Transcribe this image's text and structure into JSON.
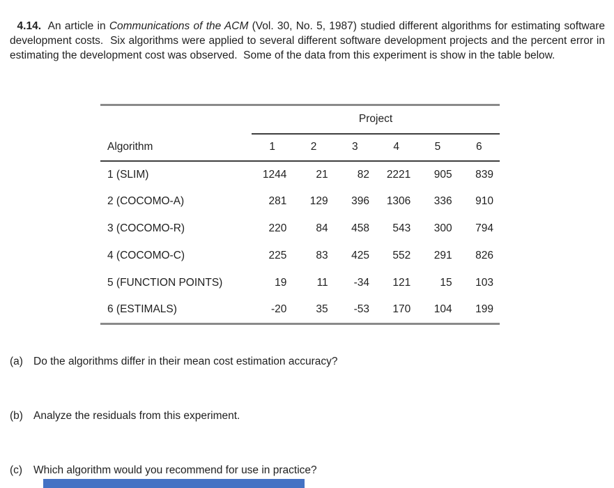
{
  "problem": {
    "number": "4.14.",
    "intro_pre_italic": "  An article in ",
    "intro_italic": "Communications of the ACM",
    "intro_post_italic": " (Vol. 30, No. 5, 1987) studied different algorithms for estimating software development costs.  Six algorithms were applied to several different software development projects and the percent error in estimating the development cost was observed.  Some of the data from this experiment is show in the table below."
  },
  "table": {
    "group_header": "Project",
    "row_header": "Algorithm",
    "columns": [
      "1",
      "2",
      "3",
      "4",
      "5",
      "6"
    ],
    "rows": [
      {
        "label": "1 (SLIM)",
        "values": [
          "1244",
          "21",
          "82",
          "2221",
          "905",
          "839"
        ]
      },
      {
        "label": "2 (COCOMO-A)",
        "values": [
          "281",
          "129",
          "396",
          "1306",
          "336",
          "910"
        ]
      },
      {
        "label": "3 (COCOMO-R)",
        "values": [
          "220",
          "84",
          "458",
          "543",
          "300",
          "794"
        ]
      },
      {
        "label": "4 (COCOMO-C)",
        "values": [
          "225",
          "83",
          "425",
          "552",
          "291",
          "826"
        ]
      },
      {
        "label": "5 (FUNCTION POINTS)",
        "values": [
          "19",
          "11",
          "-34",
          "121",
          "15",
          "103"
        ]
      },
      {
        "label": "6 (ESTIMALS)",
        "values": [
          "-20",
          "35",
          "-53",
          "170",
          "104",
          "199"
        ]
      }
    ]
  },
  "questions": [
    {
      "label": "(a)",
      "text": "Do the algorithms differ in their mean cost estimation accuracy?"
    },
    {
      "label": "(b)",
      "text": "Analyze the residuals from this experiment."
    },
    {
      "label": "(c)",
      "text": "Which algorithm would you recommend for use in practice?"
    }
  ],
  "highlight_bar": {
    "color": "#4472c4",
    "style": "background:#4472c4"
  }
}
